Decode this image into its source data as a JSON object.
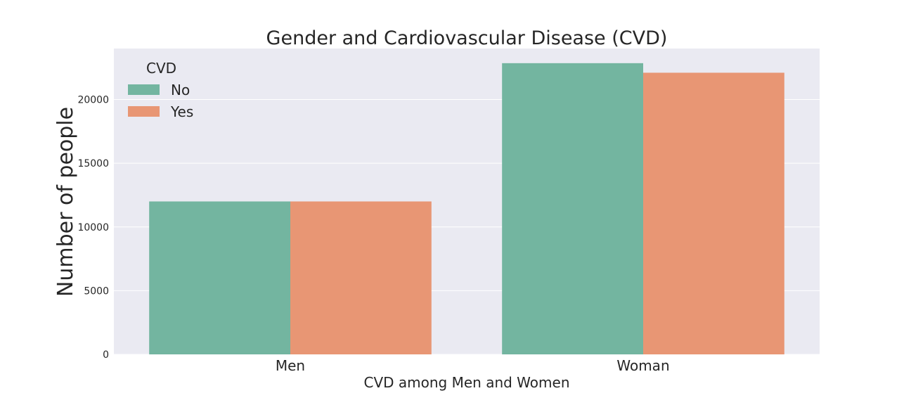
{
  "chart_data": {
    "type": "bar",
    "title": "Gender and Cardiovascular Disease (CVD)",
    "xlabel": "CVD among Men and Women",
    "ylabel": "Number of people",
    "categories": [
      "Men",
      "Woman"
    ],
    "series": [
      {
        "name": "No",
        "color": "#73b5a0",
        "values": [
          12000,
          22850
        ]
      },
      {
        "name": "Yes",
        "color": "#e89674",
        "values": [
          12000,
          22100
        ]
      }
    ],
    "ylim": [
      0,
      24000
    ],
    "yticks": [
      0,
      5000,
      10000,
      15000,
      20000
    ],
    "legend": {
      "title": "CVD",
      "placement": "top-left"
    },
    "grid": true,
    "background": "#eaeaf2"
  }
}
